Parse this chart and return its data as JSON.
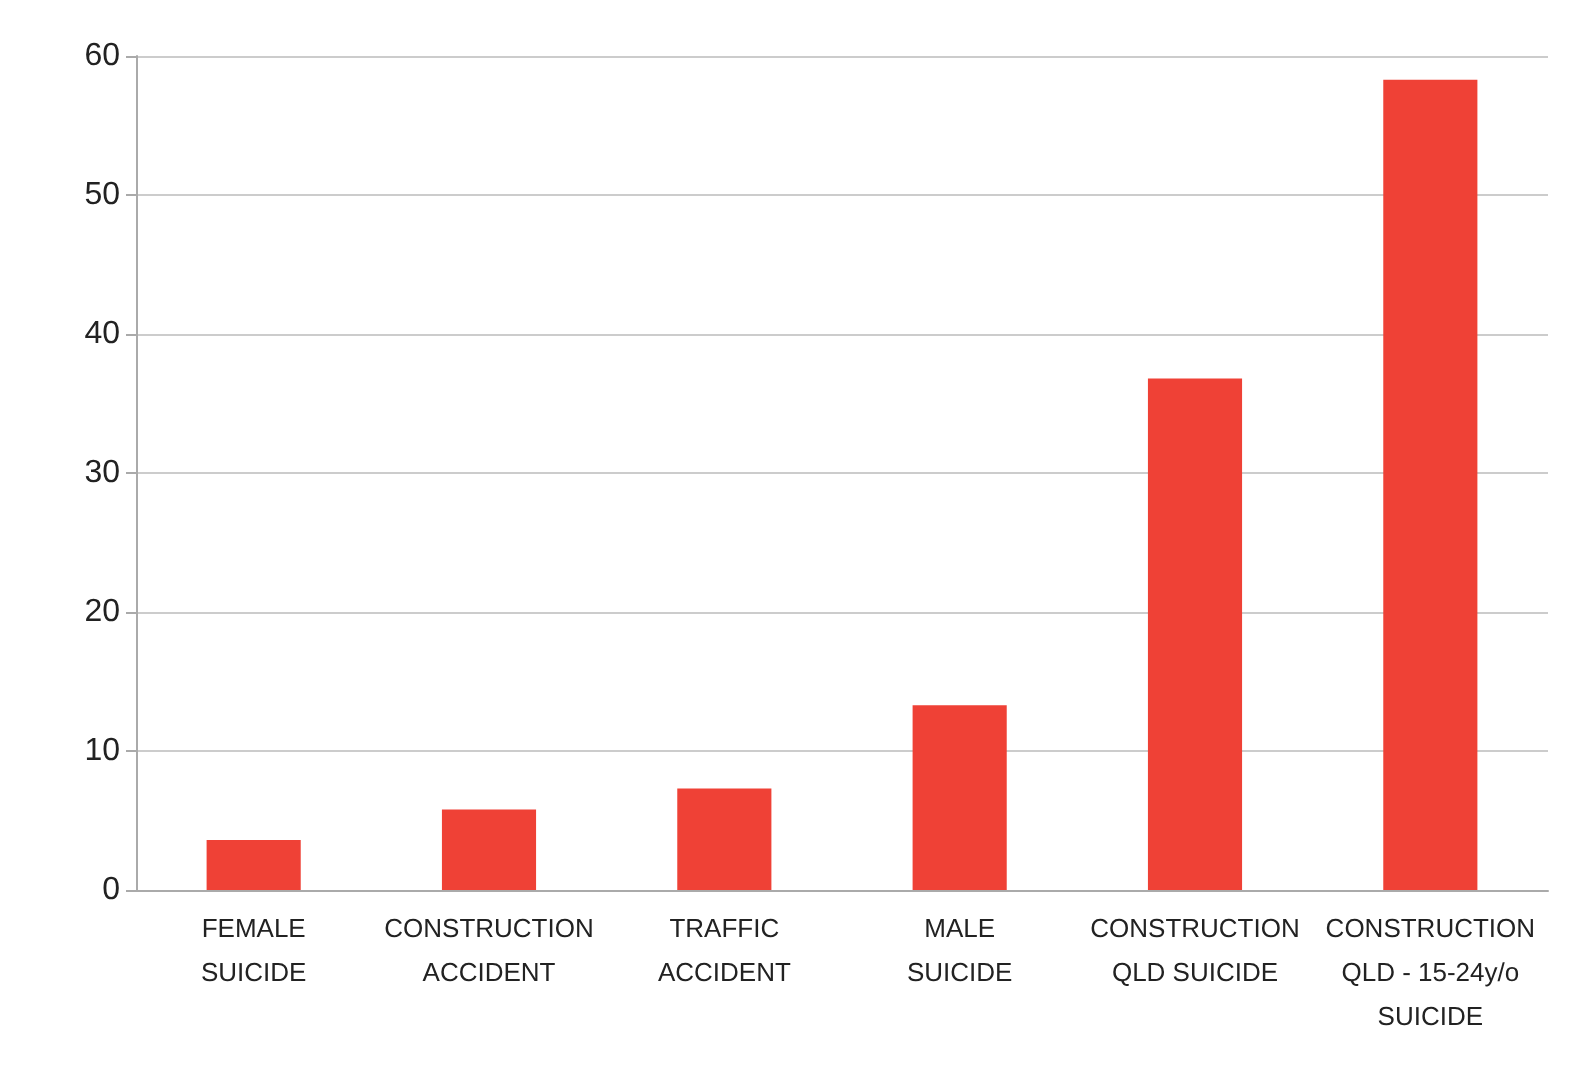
{
  "chart_data": {
    "type": "bar",
    "categories": [
      "FEMALE\nSUICIDE",
      "CONSTRUCTION\nACCIDENT",
      "TRAFFIC\nACCIDENT",
      "MALE\nSUICIDE",
      "CONSTRUCTION\nQLD SUICIDE",
      "CONSTRUCTION\nQLD - 15-24y/o\nSUICIDE"
    ],
    "values": [
      3.6,
      5.8,
      7.3,
      13.3,
      36.8,
      58.3
    ],
    "color": "#ef4136",
    "ylim": [
      0,
      60
    ],
    "yticks": [
      0,
      10,
      20,
      30,
      40,
      50,
      60
    ],
    "grid": "y"
  }
}
